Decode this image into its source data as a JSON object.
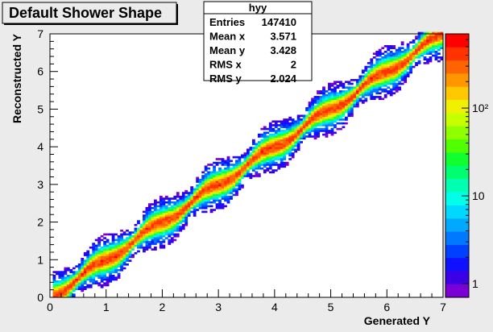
{
  "chart_data": {
    "type": "heatmap",
    "title": "Default Shower Shape",
    "xlabel": "Generated Y",
    "ylabel": "Reconstructed Y",
    "xlim": [
      0,
      7
    ],
    "ylim": [
      0,
      7
    ],
    "x_ticks": [
      "0",
      "1",
      "2",
      "3",
      "4",
      "5",
      "6",
      "7"
    ],
    "y_ticks": [
      "0",
      "1",
      "2",
      "3",
      "4",
      "5",
      "6",
      "7"
    ],
    "colorbar": {
      "scale": "log",
      "range": [
        0.7,
        700
      ],
      "tick_labels": [
        "1",
        "10",
        "10²"
      ]
    },
    "stats_box": {
      "name": "hyy",
      "rows": [
        {
          "label": "Entries",
          "value": "147410"
        },
        {
          "label": "Mean x",
          "value": "3.571"
        },
        {
          "label": "Mean y",
          "value": "3.428"
        },
        {
          "label": "RMS x",
          "value": "2"
        },
        {
          "label": "RMS y",
          "value": "2.024"
        }
      ]
    },
    "distribution": {
      "shape": "diagonal band y ≈ x with periodic S-shaped distortions",
      "peak_counts": 400,
      "x_range": [
        0.05,
        6.95
      ]
    }
  }
}
